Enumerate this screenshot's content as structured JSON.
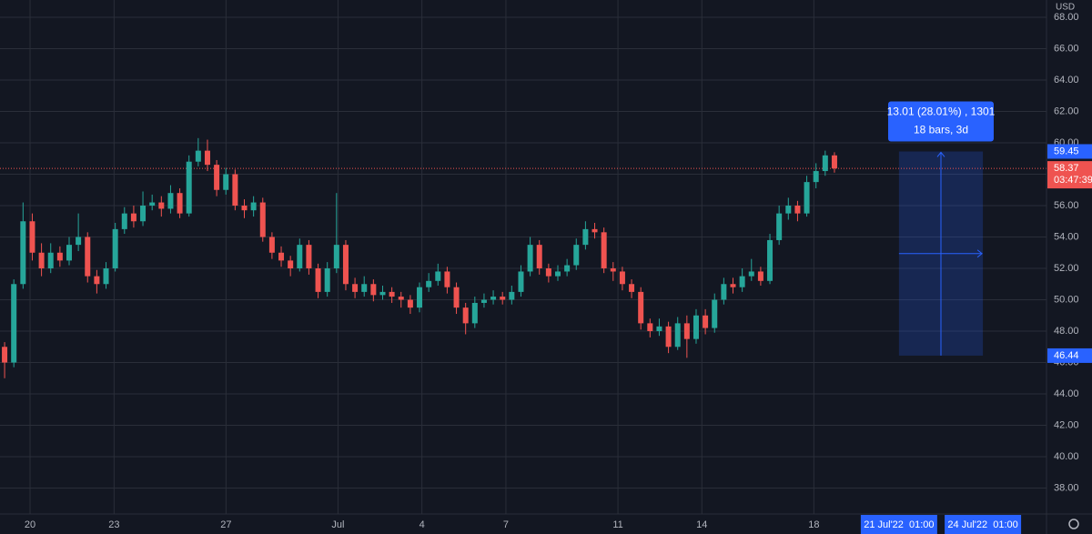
{
  "chart_data": {
    "type": "candlestick",
    "currency": "USD",
    "up_color": "#26a69a",
    "down_color": "#ef5350",
    "candles": [
      [
        47,
        47.3,
        45,
        46
      ],
      [
        46,
        51.3,
        45.7,
        51
      ],
      [
        51,
        56.2,
        50.7,
        55
      ],
      [
        55,
        55.5,
        52.5,
        53
      ],
      [
        53,
        53.6,
        51.5,
        52
      ],
      [
        52,
        53.6,
        51.7,
        53
      ],
      [
        53,
        53.4,
        52.1,
        52.5
      ],
      [
        52.5,
        54,
        52.2,
        53.5
      ],
      [
        53.5,
        55.5,
        53.1,
        54
      ],
      [
        54,
        54.3,
        51.1,
        51.5
      ],
      [
        51.5,
        51.9,
        50.4,
        51
      ],
      [
        51,
        52.4,
        50.7,
        52
      ],
      [
        52,
        54.9,
        51.8,
        54.5
      ],
      [
        54.5,
        55.9,
        54.2,
        55.5
      ],
      [
        55.5,
        56,
        54.6,
        55
      ],
      [
        55,
        56.9,
        54.7,
        56
      ],
      [
        56,
        56.7,
        55.7,
        56.2
      ],
      [
        56.2,
        56.6,
        55.3,
        55.8
      ],
      [
        55.8,
        57.3,
        55.5,
        56.8
      ],
      [
        56.8,
        57.1,
        55.2,
        55.5
      ],
      [
        55.5,
        59.2,
        55.3,
        58.8
      ],
      [
        58.8,
        60.3,
        58.5,
        59.5
      ],
      [
        59.5,
        60.2,
        58.2,
        58.6
      ],
      [
        58.6,
        58.9,
        56.6,
        57
      ],
      [
        57,
        58.4,
        56.7,
        58
      ],
      [
        58,
        58.3,
        55.7,
        56
      ],
      [
        56,
        56.4,
        55.2,
        55.7
      ],
      [
        55.7,
        56.6,
        55.3,
        56.2
      ],
      [
        56.2,
        56.5,
        53.7,
        54
      ],
      [
        54,
        54.3,
        52.6,
        53
      ],
      [
        53,
        53.4,
        52.1,
        52.5
      ],
      [
        52.5,
        52.8,
        51.5,
        52
      ],
      [
        52,
        53.9,
        51.8,
        53.5
      ],
      [
        53.5,
        53.8,
        51.6,
        52
      ],
      [
        52,
        52.3,
        50.1,
        50.5
      ],
      [
        50.5,
        52.4,
        50.2,
        52
      ],
      [
        52,
        56.8,
        51.7,
        53.5
      ],
      [
        53.5,
        53.8,
        50.6,
        51
      ],
      [
        51,
        51.4,
        50.1,
        50.5
      ],
      [
        50.5,
        51.5,
        50.2,
        51
      ],
      [
        51,
        51.3,
        49.9,
        50.3
      ],
      [
        50.3,
        50.9,
        50,
        50.5
      ],
      [
        50.5,
        50.8,
        49.8,
        50.2
      ],
      [
        50.2,
        50.5,
        49.5,
        50
      ],
      [
        50,
        50.3,
        49.1,
        49.5
      ],
      [
        49.5,
        51.1,
        49.2,
        50.8
      ],
      [
        50.8,
        51.7,
        50.5,
        51.2
      ],
      [
        51.2,
        52.3,
        50.9,
        51.8
      ],
      [
        51.8,
        52.1,
        50.4,
        50.8
      ],
      [
        50.8,
        51.1,
        49.1,
        49.5
      ],
      [
        49.5,
        49.8,
        47.8,
        48.5
      ],
      [
        48.5,
        50.2,
        48.2,
        49.8
      ],
      [
        49.8,
        50.4,
        49.5,
        50
      ],
      [
        50,
        50.6,
        49.7,
        50.2
      ],
      [
        50.2,
        50.5,
        49.7,
        50
      ],
      [
        50,
        50.9,
        49.7,
        50.5
      ],
      [
        50.5,
        52.2,
        50.2,
        51.8
      ],
      [
        51.8,
        54,
        51.5,
        53.5
      ],
      [
        53.5,
        53.8,
        51.6,
        52
      ],
      [
        52,
        52.3,
        51.1,
        51.5
      ],
      [
        51.5,
        52.2,
        51.2,
        51.8
      ],
      [
        51.8,
        52.6,
        51.5,
        52.2
      ],
      [
        52.2,
        53.9,
        51.9,
        53.5
      ],
      [
        53.5,
        55,
        53.2,
        54.5
      ],
      [
        54.5,
        54.9,
        53.9,
        54.3
      ],
      [
        54.3,
        54.6,
        51.7,
        52
      ],
      [
        52,
        52.4,
        51.2,
        51.8
      ],
      [
        51.8,
        52.1,
        50.6,
        51
      ],
      [
        51,
        51.3,
        50.1,
        50.5
      ],
      [
        50.5,
        50.8,
        48.1,
        48.5
      ],
      [
        48.5,
        48.8,
        47.6,
        48
      ],
      [
        48,
        48.8,
        47.7,
        48.3
      ],
      [
        48.3,
        48.6,
        46.6,
        47
      ],
      [
        47,
        48.9,
        46.8,
        48.5
      ],
      [
        48.5,
        49,
        46.3,
        47.5
      ],
      [
        47.5,
        49.4,
        47.2,
        49
      ],
      [
        49,
        49.4,
        47.8,
        48.2
      ],
      [
        48.2,
        50.4,
        47.9,
        50
      ],
      [
        50,
        51.4,
        49.7,
        51
      ],
      [
        51,
        51.4,
        50.4,
        50.8
      ],
      [
        50.8,
        52,
        50.5,
        51.5
      ],
      [
        51.5,
        52.6,
        51.2,
        51.8
      ],
      [
        51.8,
        52.1,
        50.9,
        51.2
      ],
      [
        51.2,
        54.2,
        51,
        53.8
      ],
      [
        53.8,
        56,
        53.5,
        55.5
      ],
      [
        55.5,
        56.5,
        55.1,
        56
      ],
      [
        56,
        56.3,
        55,
        55.5
      ],
      [
        55.5,
        57.9,
        55.3,
        57.5
      ],
      [
        57.5,
        58.7,
        57.1,
        58.2
      ],
      [
        58.2,
        59.5,
        57.9,
        59.2
      ],
      [
        59.2,
        59.4,
        58.1,
        58.37
      ]
    ],
    "xlim": [
      -0.5,
      113
    ],
    "xticks": [
      {
        "value": 2.76,
        "label": "20"
      },
      {
        "value": 11.87,
        "label": "23"
      },
      {
        "value": 24.01,
        "label": "27"
      },
      {
        "value": 36.16,
        "label": "Jul"
      },
      {
        "value": 45.26,
        "label": "4"
      },
      {
        "value": 54.37,
        "label": "7"
      },
      {
        "value": 66.52,
        "label": "11"
      },
      {
        "value": 75.62,
        "label": "14"
      },
      {
        "value": 87.77,
        "label": "18"
      }
    ],
    "ylim": [
      36.35,
      69.1
    ],
    "yticks": [
      {
        "value": 38,
        "label": "38.00"
      },
      {
        "value": 40,
        "label": "40.00"
      },
      {
        "value": 42,
        "label": "42.00"
      },
      {
        "value": 44,
        "label": "44.00"
      },
      {
        "value": 46,
        "label": "46.00"
      },
      {
        "value": 48,
        "label": "48.00"
      },
      {
        "value": 50,
        "label": "50.00"
      },
      {
        "value": 52,
        "label": "52.00"
      },
      {
        "value": 54,
        "label": "54.00"
      },
      {
        "value": 56,
        "label": "56.00"
      },
      {
        "value": 58,
        "label": "58.00"
      },
      {
        "value": 60,
        "label": "60.00"
      },
      {
        "value": 62,
        "label": "62.00"
      },
      {
        "value": 64,
        "label": "64.00"
      },
      {
        "value": 66,
        "label": "66.00"
      },
      {
        "value": 68,
        "label": "68.00"
      }
    ],
    "grid": true,
    "last_price": 58.37,
    "countdown": "03:47:39",
    "measure": {
      "x_start": 97,
      "x_end": 106.1,
      "price_top": 59.45,
      "price_bottom": 46.44,
      "label": "13.01 (28.01%) , 1301",
      "sublabel": "18 bars, 3d",
      "start_label": "21 Jul'22  01:00",
      "end_label": "24 Jul'22  01:00"
    }
  }
}
